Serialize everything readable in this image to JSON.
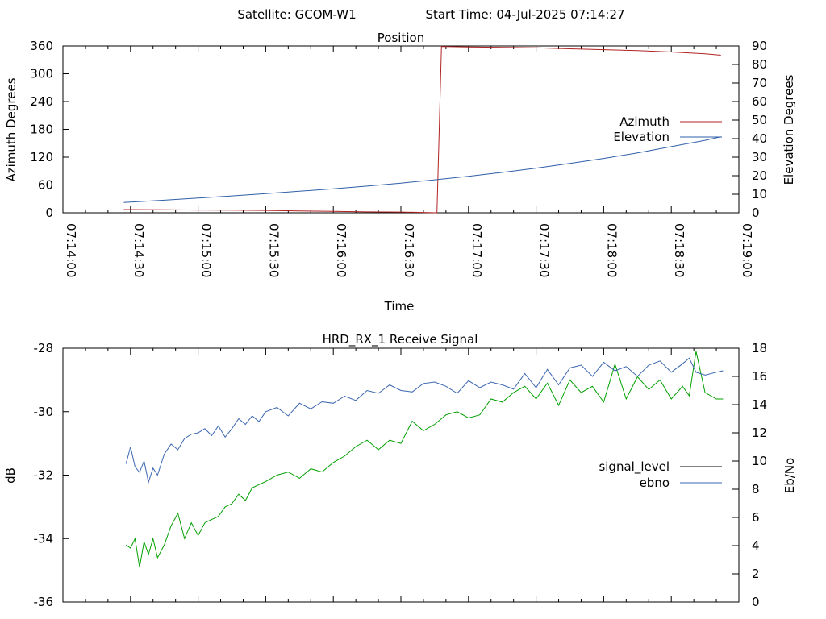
{
  "header": {
    "satellite_label": "Satellite: GCOM-W1",
    "start_time_label": "Start Time: 04-Jul-2025 07:14:27"
  },
  "chart_data": [
    {
      "type": "line",
      "title": "Position",
      "xlabel": "Time",
      "ylabel": "Azimuth Degrees",
      "y2label": "Elevation Degrees",
      "xlim": [
        "07:14:00",
        "07:19:00"
      ],
      "ylim": [
        0,
        360
      ],
      "y2lim": [
        0,
        90
      ],
      "xticks": [
        "07:14:00",
        "07:14:30",
        "07:15:00",
        "07:15:30",
        "07:16:00",
        "07:16:30",
        "07:17:00",
        "07:17:30",
        "07:18:00",
        "07:18:30",
        "07:19:00"
      ],
      "yticks": [
        0,
        60,
        120,
        180,
        240,
        300,
        360
      ],
      "y2ticks": [
        0,
        10,
        20,
        30,
        40,
        50,
        60,
        70,
        80,
        90
      ],
      "legend_position": "right",
      "series": [
        {
          "name": "Azimuth",
          "axis": "y",
          "color": "#b22222",
          "x": [
            "07:14:27",
            "07:14:45",
            "07:15:00",
            "07:15:15",
            "07:15:30",
            "07:15:45",
            "07:16:00",
            "07:16:15",
            "07:16:30",
            "07:16:42",
            "07:16:46",
            "07:16:48",
            "07:17:00",
            "07:17:15",
            "07:17:30",
            "07:17:45",
            "07:18:00",
            "07:18:15",
            "07:18:30",
            "07:18:45",
            "07:18:52"
          ],
          "values": [
            7,
            6.5,
            6,
            5.5,
            5,
            4,
            3,
            2,
            1.5,
            0.5,
            0,
            359,
            358,
            357,
            356,
            354,
            352,
            350,
            347,
            343,
            340
          ]
        },
        {
          "name": "Elevation",
          "axis": "y2",
          "color": "#2f5fa8",
          "x": [
            "07:14:27",
            "07:14:45",
            "07:15:00",
            "07:15:15",
            "07:15:30",
            "07:15:45",
            "07:16:00",
            "07:16:15",
            "07:16:30",
            "07:16:45",
            "07:17:00",
            "07:17:15",
            "07:17:30",
            "07:17:45",
            "07:18:00",
            "07:18:15",
            "07:18:30",
            "07:18:45",
            "07:18:52"
          ],
          "values": [
            5.5,
            6.8,
            7.9,
            9.1,
            10.3,
            11.6,
            12.9,
            14.4,
            16.0,
            17.8,
            19.7,
            21.8,
            24.1,
            26.6,
            29.3,
            32.3,
            35.7,
            39.1,
            41.0
          ]
        }
      ]
    },
    {
      "type": "line",
      "title": "HRD_RX_1 Receive Signal",
      "xlabel": "",
      "ylabel": "dB",
      "y2label": "Eb/No",
      "xlim": [
        "07:14:00",
        "07:19:00"
      ],
      "ylim": [
        -36,
        -28
      ],
      "y2lim": [
        0,
        18
      ],
      "yticks": [
        -36,
        -34,
        -32,
        -30,
        -28
      ],
      "y2ticks": [
        0,
        2,
        4,
        6,
        8,
        10,
        12,
        14,
        16,
        18
      ],
      "legend_position": "right",
      "series": [
        {
          "name": "signal_level",
          "axis": "y",
          "color": "#00a000",
          "x": [
            "07:14:28",
            "07:14:30",
            "07:14:32",
            "07:14:34",
            "07:14:36",
            "07:14:38",
            "07:14:40",
            "07:14:42",
            "07:14:45",
            "07:14:48",
            "07:14:51",
            "07:14:54",
            "07:14:57",
            "07:15:00",
            "07:15:03",
            "07:15:06",
            "07:15:09",
            "07:15:12",
            "07:15:15",
            "07:15:18",
            "07:15:21",
            "07:15:24",
            "07:15:27",
            "07:15:30",
            "07:15:35",
            "07:15:40",
            "07:15:45",
            "07:15:50",
            "07:15:55",
            "07:16:00",
            "07:16:05",
            "07:16:10",
            "07:16:15",
            "07:16:20",
            "07:16:25",
            "07:16:30",
            "07:16:35",
            "07:16:40",
            "07:16:45",
            "07:16:50",
            "07:16:55",
            "07:17:00",
            "07:17:05",
            "07:17:10",
            "07:17:15",
            "07:17:20",
            "07:17:25",
            "07:17:30",
            "07:17:35",
            "07:17:40",
            "07:17:45",
            "07:17:50",
            "07:17:55",
            "07:18:00",
            "07:18:05",
            "07:18:10",
            "07:18:15",
            "07:18:20",
            "07:18:25",
            "07:18:30",
            "07:18:35",
            "07:18:38",
            "07:18:41",
            "07:18:45",
            "07:18:50",
            "07:18:53"
          ],
          "values": [
            -34.2,
            -34.3,
            -34.0,
            -34.9,
            -34.1,
            -34.5,
            -34.0,
            -34.6,
            -34.2,
            -33.6,
            -33.2,
            -34.0,
            -33.5,
            -33.9,
            -33.5,
            -33.4,
            -33.3,
            -33.0,
            -32.9,
            -32.6,
            -32.8,
            -32.4,
            -32.3,
            -32.2,
            -32.0,
            -31.9,
            -32.1,
            -31.8,
            -31.9,
            -31.6,
            -31.4,
            -31.1,
            -30.9,
            -31.2,
            -30.9,
            -31.0,
            -30.3,
            -30.6,
            -30.4,
            -30.1,
            -30.0,
            -30.2,
            -30.1,
            -29.6,
            -29.7,
            -29.4,
            -29.2,
            -29.6,
            -29.1,
            -29.8,
            -29.0,
            -29.4,
            -29.2,
            -29.7,
            -28.5,
            -29.6,
            -28.9,
            -29.3,
            -29.0,
            -29.6,
            -29.2,
            -29.5,
            -28.1,
            -29.4,
            -29.6,
            -29.6
          ]
        },
        {
          "name": "ebno",
          "axis": "y2",
          "color": "#3a66b0",
          "x": [
            "07:14:28",
            "07:14:30",
            "07:14:32",
            "07:14:34",
            "07:14:36",
            "07:14:38",
            "07:14:40",
            "07:14:42",
            "07:14:45",
            "07:14:48",
            "07:14:51",
            "07:14:54",
            "07:14:57",
            "07:15:00",
            "07:15:03",
            "07:15:06",
            "07:15:09",
            "07:15:12",
            "07:15:15",
            "07:15:18",
            "07:15:21",
            "07:15:24",
            "07:15:27",
            "07:15:30",
            "07:15:35",
            "07:15:40",
            "07:15:45",
            "07:15:50",
            "07:15:55",
            "07:16:00",
            "07:16:05",
            "07:16:10",
            "07:16:15",
            "07:16:20",
            "07:16:25",
            "07:16:30",
            "07:16:35",
            "07:16:40",
            "07:16:45",
            "07:16:50",
            "07:16:55",
            "07:17:00",
            "07:17:05",
            "07:17:10",
            "07:17:15",
            "07:17:20",
            "07:17:25",
            "07:17:30",
            "07:17:35",
            "07:17:40",
            "07:17:45",
            "07:17:50",
            "07:17:55",
            "07:18:00",
            "07:18:05",
            "07:18:10",
            "07:18:15",
            "07:18:20",
            "07:18:25",
            "07:18:30",
            "07:18:35",
            "07:18:38",
            "07:18:41",
            "07:18:45",
            "07:18:50",
            "07:18:53"
          ],
          "values": [
            9.8,
            11.0,
            9.6,
            9.2,
            10.0,
            8.5,
            9.5,
            9.0,
            10.5,
            11.2,
            10.8,
            11.6,
            11.9,
            12.0,
            12.3,
            11.8,
            12.5,
            11.7,
            12.3,
            13.0,
            12.6,
            13.2,
            12.8,
            13.5,
            13.8,
            13.2,
            14.1,
            13.7,
            14.2,
            14.1,
            14.6,
            14.3,
            15.0,
            14.8,
            15.4,
            15.0,
            14.9,
            15.5,
            15.6,
            15.3,
            14.8,
            15.7,
            15.2,
            15.6,
            15.4,
            15.1,
            16.2,
            15.2,
            16.5,
            15.4,
            16.6,
            16.8,
            16.0,
            17.0,
            16.4,
            16.7,
            16.0,
            16.8,
            17.1,
            16.3,
            16.9,
            17.3,
            16.3,
            16.1,
            16.3,
            16.4
          ]
        }
      ]
    }
  ]
}
